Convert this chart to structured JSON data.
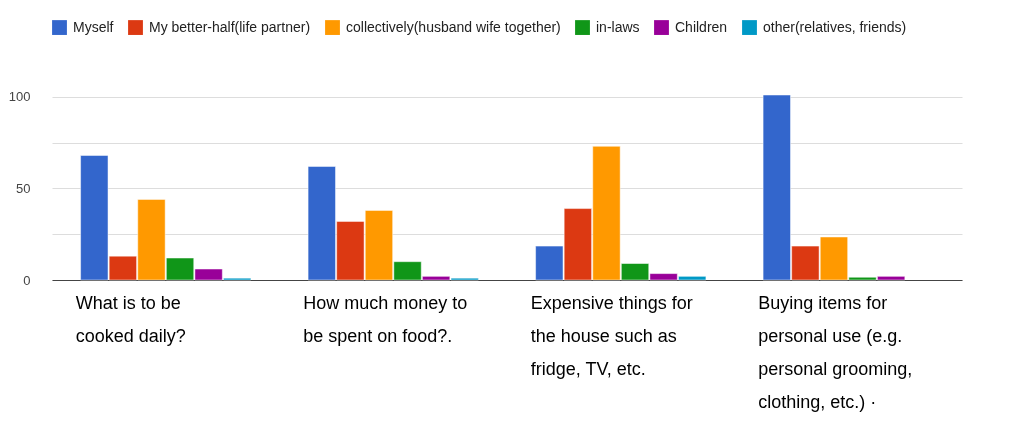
{
  "chart_data": {
    "type": "bar",
    "categories": [
      "What is to be cooked daily?",
      "How much money to be spent on food?.",
      "Expensive things for the house such as fridge, TV, etc.",
      "Buying items for personal use (e.g. personal grooming, clothing, etc.) ·"
    ],
    "series": [
      {
        "name": "Myself",
        "color": "#3366cc",
        "values": [
          68,
          62,
          18.5,
          101
        ]
      },
      {
        "name": "My better-half(life partner)",
        "color": "#dc3912",
        "values": [
          13,
          32,
          39,
          18.5
        ]
      },
      {
        "name": "collectively(husband wife together)",
        "color": "#ff9900",
        "values": [
          44,
          38,
          73,
          23.5
        ]
      },
      {
        "name": "in-laws",
        "color": "#109618",
        "values": [
          12,
          10,
          9,
          1.5
        ]
      },
      {
        "name": "Children",
        "color": "#990099",
        "values": [
          6,
          2,
          3.5,
          2
        ]
      },
      {
        "name": "other(relatives, friends)",
        "color": "#0099c6",
        "values": [
          1,
          1,
          2,
          null
        ]
      }
    ],
    "ylim": [
      0,
      101
    ],
    "yticks": [
      0,
      {
        "value": 25,
        "label": null
      },
      50,
      {
        "value": 75,
        "label": null
      },
      100
    ],
    "grid": "y",
    "legend": "top"
  }
}
